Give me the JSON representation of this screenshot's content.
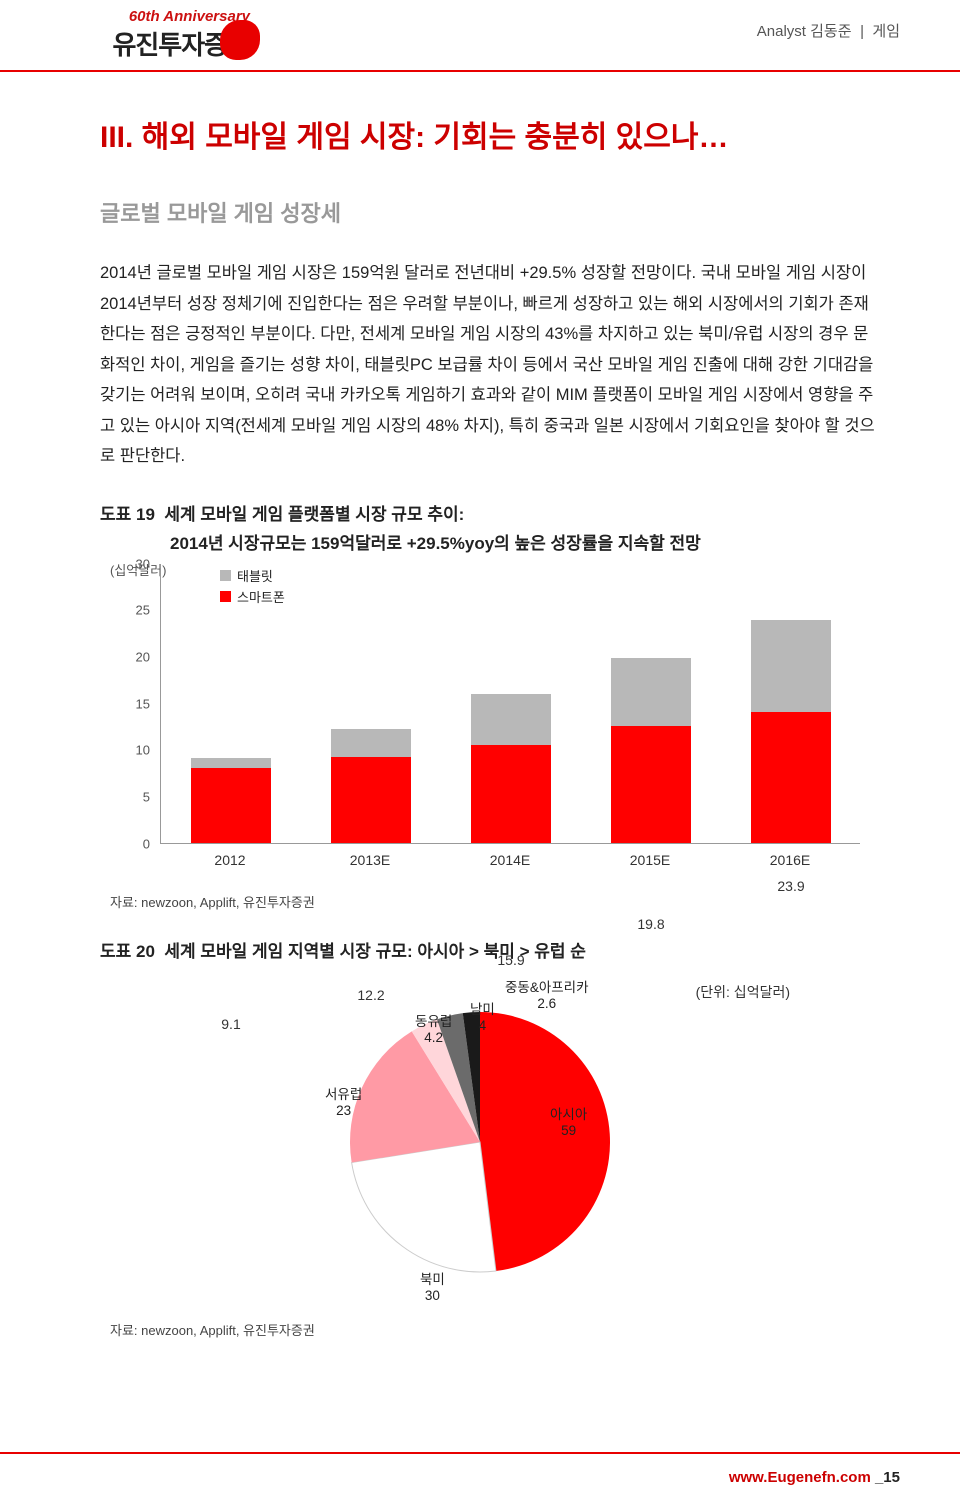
{
  "header": {
    "analyst_label": "Analyst 김동준",
    "sector": "게임",
    "logo_anniv": "60th Anniversary",
    "logo_kr": "유진투자증권"
  },
  "title": "III. 해외 모바일 게임 시장: 기회는 충분히 있으나…",
  "subtitle": "글로벌 모바일 게임 성장세",
  "body": "2014년 글로벌 모바일 게임 시장은 159억원 달러로 전년대비 +29.5% 성장할 전망이다. 국내 모바일 게임 시장이 2014년부터 성장 정체기에 진입한다는 점은 우려할 부분이나, 빠르게 성장하고 있는 해외 시장에서의 기회가 존재한다는 점은 긍정적인 부분이다. 다만, 전세계 모바일 게임 시장의 43%를 차지하고 있는 북미/유럽 시장의 경우 문화적인 차이, 게임을 즐기는 성향 차이, 태블릿PC 보급률 차이 등에서 국산 모바일 게임 진출에 대해 강한 기대감을 갖기는 어려워 보이며, 오히려 국내 카카오톡 게임하기 효과와 같이 MIM 플랫폼이 모바일 게임 시장에서 영향을 주고 있는 아시아 지역(전세계 모바일 게임 시장의 48% 차지), 특히 중국과 일본 시장에서 기회요인을 찾아야 할 것으로 판단한다.",
  "fig19": {
    "label": "도표 19",
    "title": "세계 모바일 게임 플랫폼별 시장 규모 추이:",
    "subtitle": "2014년 시장규모는 159억달러로 +29.5%yoy의 높은 성장률을 지속할 전망",
    "unit": "(십억달러)",
    "legend": [
      {
        "name": "태블릿",
        "color": "#b8b8b8"
      },
      {
        "name": "스마트폰",
        "color": "#ff0000"
      }
    ],
    "type": "stacked-bar",
    "ylim": [
      0,
      30
    ],
    "ytick_step": 5,
    "categories": [
      "2012",
      "2013E",
      "2014E",
      "2015E",
      "2016E"
    ],
    "totals": [
      9.1,
      12.2,
      15.9,
      19.8,
      23.9
    ],
    "series": {
      "smartphone": [
        8.0,
        9.2,
        10.5,
        12.5,
        14.0
      ],
      "tablet": [
        1.1,
        3.0,
        5.4,
        7.3,
        9.9
      ]
    },
    "colors": {
      "smartphone": "#ff0000",
      "tablet": "#b8b8b8"
    },
    "background": "#ffffff",
    "axis_color": "#999999",
    "label_fontsize": 14,
    "source": "자료: newzoon, Applift, 유진투자증권"
  },
  "fig20": {
    "label": "도표 20",
    "title": "세계 모바일 게임 지역별 시장 규모: 아시아 > 북미 > 유럽 순",
    "unit": "(단위: 십억달러)",
    "type": "pie",
    "slices": [
      {
        "name": "아시아",
        "value": 59,
        "color": "#ff0000"
      },
      {
        "name": "북미",
        "value": 30,
        "color": "#ffffff",
        "stroke": "#cccccc"
      },
      {
        "name": "서유럽",
        "value": 23,
        "color": "#ff9aa5"
      },
      {
        "name": "동유럽",
        "value": 4.2,
        "color": "#ffd6da"
      },
      {
        "name": "남미",
        "value": 4,
        "color": "#6b6b6b"
      },
      {
        "name": "중동&아프리카",
        "value": 2.6,
        "color": "#1a1a1a"
      }
    ],
    "source": "자료: newzoon, Applift, 유진투자증권"
  },
  "footer": {
    "url": "www.Eugenefn.com",
    "page": "_15"
  }
}
